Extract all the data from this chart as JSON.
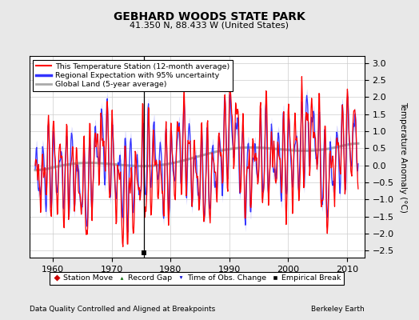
{
  "title": "GEBHARD WOODS STATE PARK",
  "subtitle": "41.350 N, 88.433 W (United States)",
  "ylabel": "Temperature Anomaly (°C)",
  "xlabel_left": "Data Quality Controlled and Aligned at Breakpoints",
  "xlabel_right": "Berkeley Earth",
  "xlim": [
    1956,
    2013
  ],
  "ylim": [
    -2.7,
    3.2
  ],
  "yticks": [
    -2.5,
    -2,
    -1.5,
    -1,
    -0.5,
    0,
    0.5,
    1,
    1.5,
    2,
    2.5,
    3
  ],
  "xticks": [
    1960,
    1970,
    1980,
    1990,
    2000,
    2010
  ],
  "bg_color": "#e8e8e8",
  "plot_bg_color": "#ffffff",
  "vertical_line_year": 1975.5,
  "empirical_break_x": 1975.5,
  "empirical_break_y": -2.55,
  "station_color": "#ff0000",
  "regional_color": "#3333ff",
  "regional_band_color": "#aaaaff",
  "global_color": "#aaaaaa",
  "grid_color": "#cccccc"
}
